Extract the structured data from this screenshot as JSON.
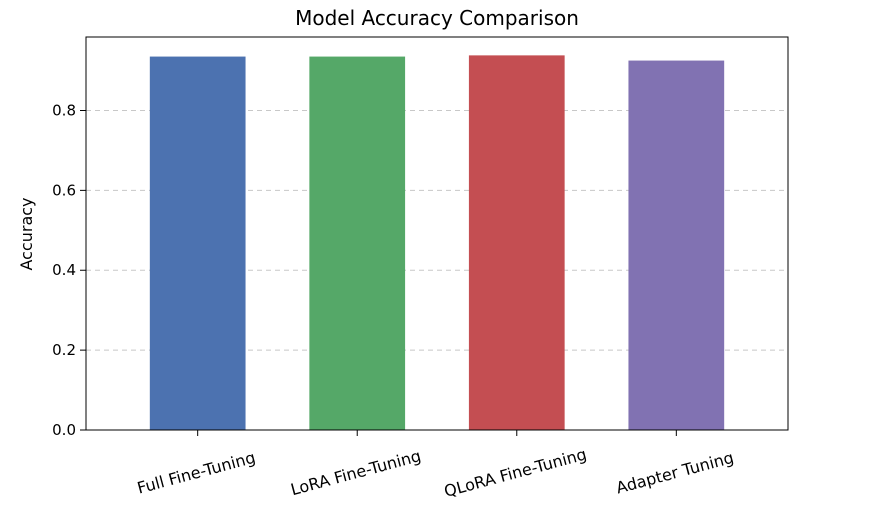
{
  "chart_data": {
    "type": "bar",
    "title": "Model Accuracy Comparison",
    "xlabel": "",
    "ylabel": "Accuracy",
    "categories": [
      "Full Fine-Tuning",
      "LoRA Fine-Tuning",
      "QLoRA Fine-Tuning",
      "Adapter Tuning"
    ],
    "values": [
      0.935,
      0.935,
      0.938,
      0.925
    ],
    "colors": [
      "#4c72b0",
      "#55a868",
      "#c44e52",
      "#8172b2"
    ],
    "ylim": [
      0,
      0.984
    ],
    "yticks": [
      0.0,
      0.2,
      0.4,
      0.6,
      0.8
    ],
    "ytick_labels": [
      "0.0",
      "0.2",
      "0.4",
      "0.6",
      "0.8"
    ],
    "grid": {
      "axis": "y",
      "style": "dashed",
      "color": "#c8c8c8"
    },
    "xtick_rotation": 15
  }
}
